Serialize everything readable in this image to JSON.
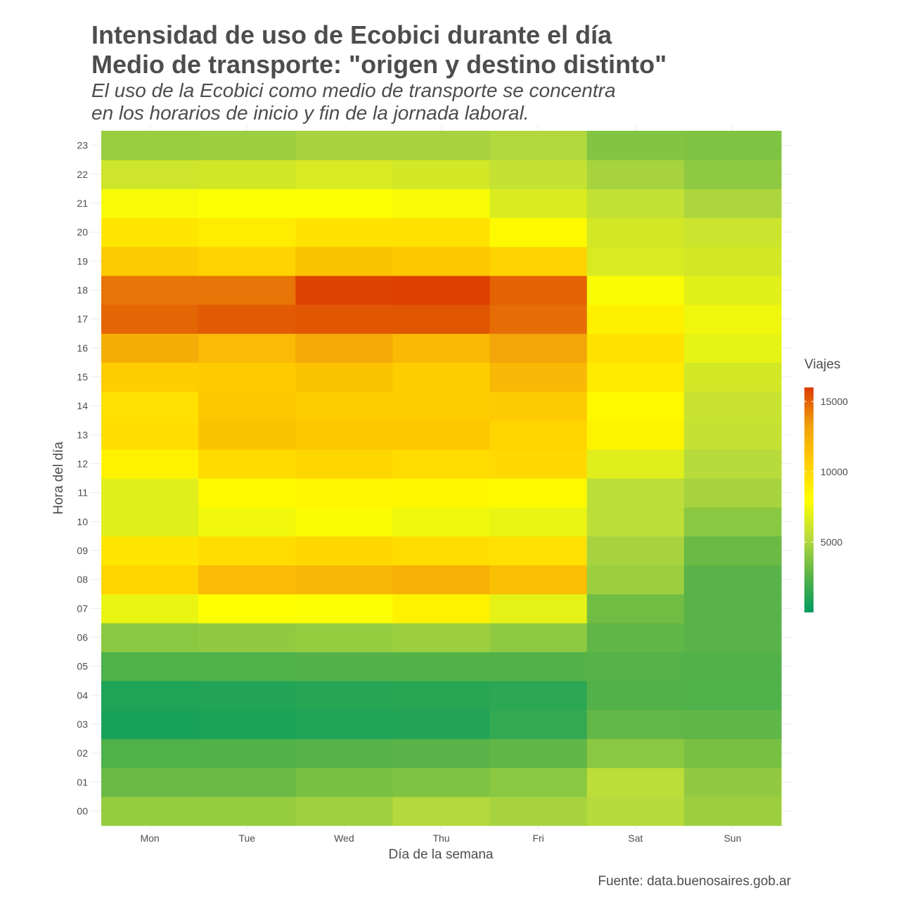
{
  "chart_data": {
    "type": "heatmap",
    "title_line1": "Intensidad de uso de Ecobici durante el día",
    "title_line2": "Medio de transporte: \"origen y destino distinto\"",
    "subtitle_line1": "El uso de la Ecobici como medio de transporte se concentra",
    "subtitle_line2": "en los horarios de inicio y fin de la jornada laboral.",
    "xlabel": "Día de la semana",
    "ylabel": "Hora del día",
    "caption": "Fuente: data.buenosaires.gob.ar",
    "legend_title": "Viajes",
    "x": [
      "Mon",
      "Tue",
      "Wed",
      "Thu",
      "Fri",
      "Sat",
      "Sun"
    ],
    "y": [
      "00",
      "01",
      "02",
      "03",
      "04",
      "05",
      "06",
      "07",
      "08",
      "09",
      "10",
      "11",
      "12",
      "13",
      "14",
      "15",
      "16",
      "17",
      "18",
      "19",
      "20",
      "21",
      "22",
      "23"
    ],
    "values": [
      [
        4300,
        4300,
        4600,
        5200,
        4800,
        5300,
        4500
      ],
      [
        3100,
        3100,
        3500,
        3700,
        4000,
        5500,
        4200
      ],
      [
        2300,
        2400,
        2500,
        2600,
        2800,
        4000,
        3500
      ],
      [
        700,
        800,
        900,
        1000,
        1500,
        2900,
        2800
      ],
      [
        900,
        1000,
        1100,
        1200,
        1300,
        2400,
        2300
      ],
      [
        2300,
        2300,
        2400,
        2400,
        2400,
        2500,
        2400
      ],
      [
        4000,
        4200,
        4300,
        4500,
        4100,
        2800,
        2600
      ],
      [
        7200,
        8000,
        7900,
        8700,
        7000,
        3300,
        2600
      ],
      [
        10200,
        11700,
        11900,
        12300,
        11500,
        4500,
        2600
      ],
      [
        9300,
        9800,
        10100,
        9800,
        9600,
        4800,
        3100
      ],
      [
        6800,
        7500,
        7800,
        7400,
        7200,
        5500,
        4000
      ],
      [
        6800,
        8300,
        8500,
        8400,
        8300,
        5500,
        4800
      ],
      [
        8700,
        9900,
        10100,
        9800,
        10000,
        6800,
        5300
      ],
      [
        9700,
        11300,
        11000,
        11000,
        10200,
        8600,
        5800
      ],
      [
        9600,
        11000,
        10600,
        10600,
        10800,
        8300,
        5900
      ],
      [
        10600,
        10700,
        11300,
        10600,
        11900,
        9100,
        6300
      ],
      [
        12500,
        11700,
        12800,
        11800,
        13000,
        9500,
        7100
      ],
      [
        14900,
        15200,
        15300,
        15300,
        14700,
        8800,
        7400
      ],
      [
        14500,
        14500,
        15800,
        15900,
        15000,
        7800,
        6900
      ],
      [
        10800,
        10300,
        11300,
        10900,
        10300,
        6500,
        6300
      ],
      [
        9300,
        9000,
        9500,
        9500,
        8300,
        6300,
        6000
      ],
      [
        7700,
        7900,
        7900,
        7700,
        6600,
        5700,
        5000
      ],
      [
        6100,
        6200,
        6500,
        6300,
        5800,
        4800,
        4100
      ],
      [
        4400,
        4500,
        4800,
        4800,
        5100,
        3800,
        3700
      ]
    ],
    "scale_min": 0,
    "scale_max": 16000,
    "legend_breaks": [
      5000,
      10000,
      15000
    ],
    "colors": [
      "#009b5f",
      "#5bb447",
      "#b9db3c",
      "#ffff00",
      "#ffcc00",
      "#f0a00a",
      "#dc3c00"
    ],
    "grid": true,
    "legend_position": "right"
  }
}
